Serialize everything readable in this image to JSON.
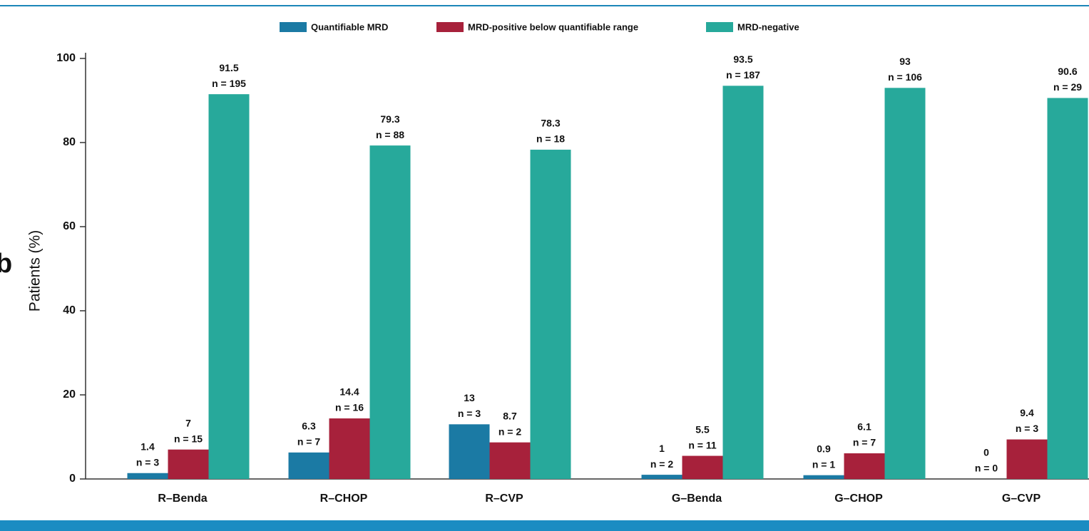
{
  "chart_data": {
    "type": "bar",
    "panel_label": "b",
    "y_label": "Patients (%)",
    "categories": [
      "R–Benda",
      "R–CHOP",
      "R–CVP",
      "G–Benda",
      "G–CHOP",
      "G–CVP"
    ],
    "series": [
      {
        "name": "Quantifiable MRD",
        "color": "#1b7aa4",
        "values": [
          1.4,
          6.3,
          13,
          1,
          0.9,
          0
        ],
        "n_labels": [
          "n = 3",
          "n = 7",
          "n = 3",
          "n = 2",
          "n = 1",
          "n = 0"
        ]
      },
      {
        "name": "MRD-positive below quantifiable range",
        "color": "#a7213b",
        "values": [
          7,
          14.4,
          8.7,
          5.5,
          6.1,
          9.4
        ],
        "n_labels": [
          "n = 15",
          "n = 16",
          "n = 2",
          "n = 11",
          "n = 7",
          "n = 3"
        ]
      },
      {
        "name": "MRD-negative",
        "color": "#27a99b",
        "values": [
          91.5,
          79.3,
          78.3,
          93.5,
          93,
          90.6
        ],
        "n_labels": [
          "n = 195",
          "n = 88",
          "n = 18",
          "n = 187",
          "n = 106",
          "n = 29"
        ]
      }
    ],
    "ylim": [
      0,
      100
    ],
    "yticks": [
      0,
      20,
      40,
      60,
      80,
      100
    ],
    "legend": "top"
  }
}
